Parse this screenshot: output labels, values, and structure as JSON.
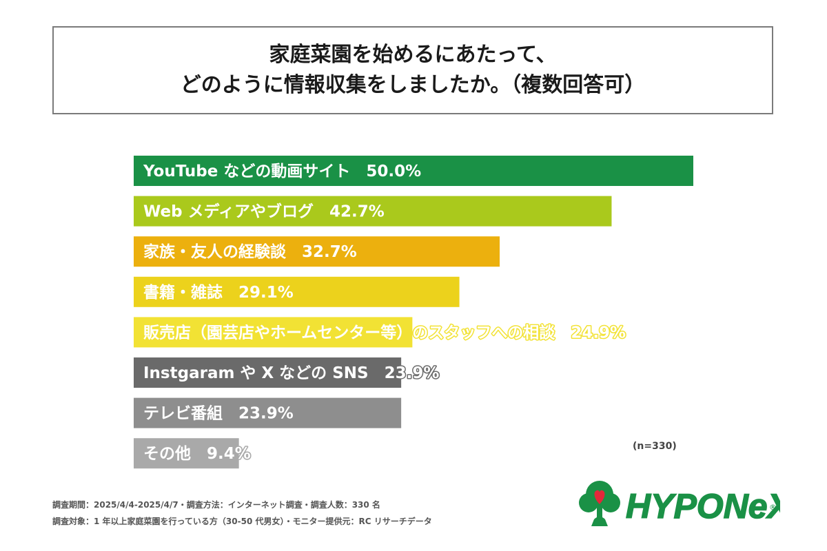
{
  "title": {
    "line1": "家庭菜園を始めるにあたって、",
    "line2": "どのように情報収集をしましたか。（複数回答可）"
  },
  "chart_data": {
    "type": "bar",
    "orientation": "horizontal",
    "categories": [
      "YouTube などの動画サイト",
      "Web メディアやブログ",
      "家族・友人の経験談",
      "書籍・雑誌",
      "販売店（園芸店やホームセンター等）のスタッフへの相談",
      "Instgaram や X などの SNS",
      "テレビ番組",
      "その他"
    ],
    "values": [
      50.0,
      42.7,
      32.7,
      29.1,
      24.9,
      23.9,
      23.9,
      9.4
    ],
    "value_labels": [
      "50.0%",
      "42.7%",
      "32.7%",
      "29.1%",
      "24.9%",
      "23.9%",
      "23.9%",
      "9.4%"
    ],
    "colors": [
      "#1a9146",
      "#aac91c",
      "#ecb00e",
      "#ecd21c",
      "#f2e234",
      "#6a6a6a",
      "#8e8e8e",
      "#a9a9a9"
    ],
    "xlim": [
      0,
      50
    ],
    "grid": false
  },
  "sample_note": "(n=330)",
  "footnotes": {
    "line1": "調査期間：2025/4/4-2025/4/7・調査方法：インターネット調査・調査人数：330 名",
    "line2": "調査対象：1 年以上家庭菜園を行っている方（30-50 代男女）・モニター提供元：RC リサーチデータ"
  },
  "logo": {
    "text": "HYPONeX",
    "registered": "®",
    "color": "#1a9146"
  }
}
